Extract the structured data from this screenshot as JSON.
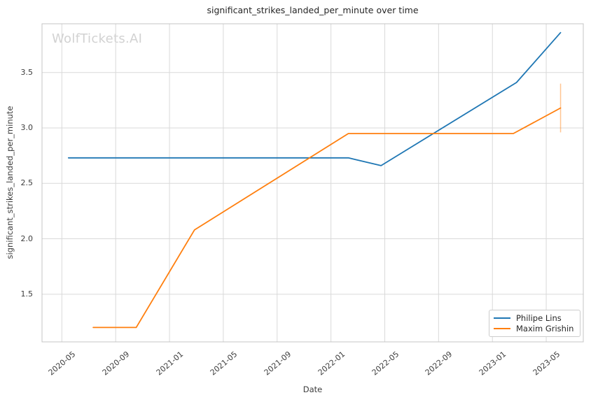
{
  "watermark": "WolfTickets.AI",
  "chart_data": {
    "type": "line",
    "title": "significant_strikes_landed_per_minute over time",
    "xlabel": "Date",
    "ylabel": "significant_strikes_landed_per_minute",
    "x_tick_labels": [
      "2020-05",
      "2020-09",
      "2021-01",
      "2021-05",
      "2021-09",
      "2022-01",
      "2022-05",
      "2022-09",
      "2023-01",
      "2023-05"
    ],
    "y_tick_values": [
      1.5,
      2.0,
      2.5,
      3.0,
      3.5
    ],
    "xlim": [
      "2020-03-17",
      "2023-07-24"
    ],
    "ylim": [
      1.07,
      3.94
    ],
    "grid": true,
    "legend_position": "lower right",
    "series": [
      {
        "name": "Philipe Lins",
        "color": "#1f77b4",
        "points": [
          {
            "date": "2020-05-16",
            "value": 2.73
          },
          {
            "date": "2022-02-10",
            "value": 2.73
          },
          {
            "date": "2022-04-23",
            "value": 2.66
          },
          {
            "date": "2023-02-25",
            "value": 3.41
          },
          {
            "date": "2023-06-03",
            "value": 3.86
          }
        ]
      },
      {
        "name": "Maxim Grishin",
        "color": "#ff7f0e",
        "points": [
          {
            "date": "2020-07-11",
            "value": 1.2
          },
          {
            "date": "2020-10-17",
            "value": 1.2
          },
          {
            "date": "2021-02-27",
            "value": 2.08
          },
          {
            "date": "2022-02-10",
            "value": 2.95
          },
          {
            "date": "2023-02-18",
            "value": 2.95
          },
          {
            "date": "2023-06-03",
            "value": 3.18
          }
        ],
        "error_bars": [
          {
            "date": "2023-06-03",
            "low": 2.96,
            "high": 3.4
          }
        ]
      }
    ]
  },
  "style": {
    "background": "#ffffff",
    "grid_color": "#d9d9d9",
    "spine_color": "#c4c4c4",
    "tick_text_color": "#3d3d3d",
    "title_color": "#262626",
    "watermark_color": "#d2d2d2",
    "series_blue": "#1f77b4",
    "series_orange": "#ff7f0e",
    "error_bar_opacity": 0.45
  }
}
